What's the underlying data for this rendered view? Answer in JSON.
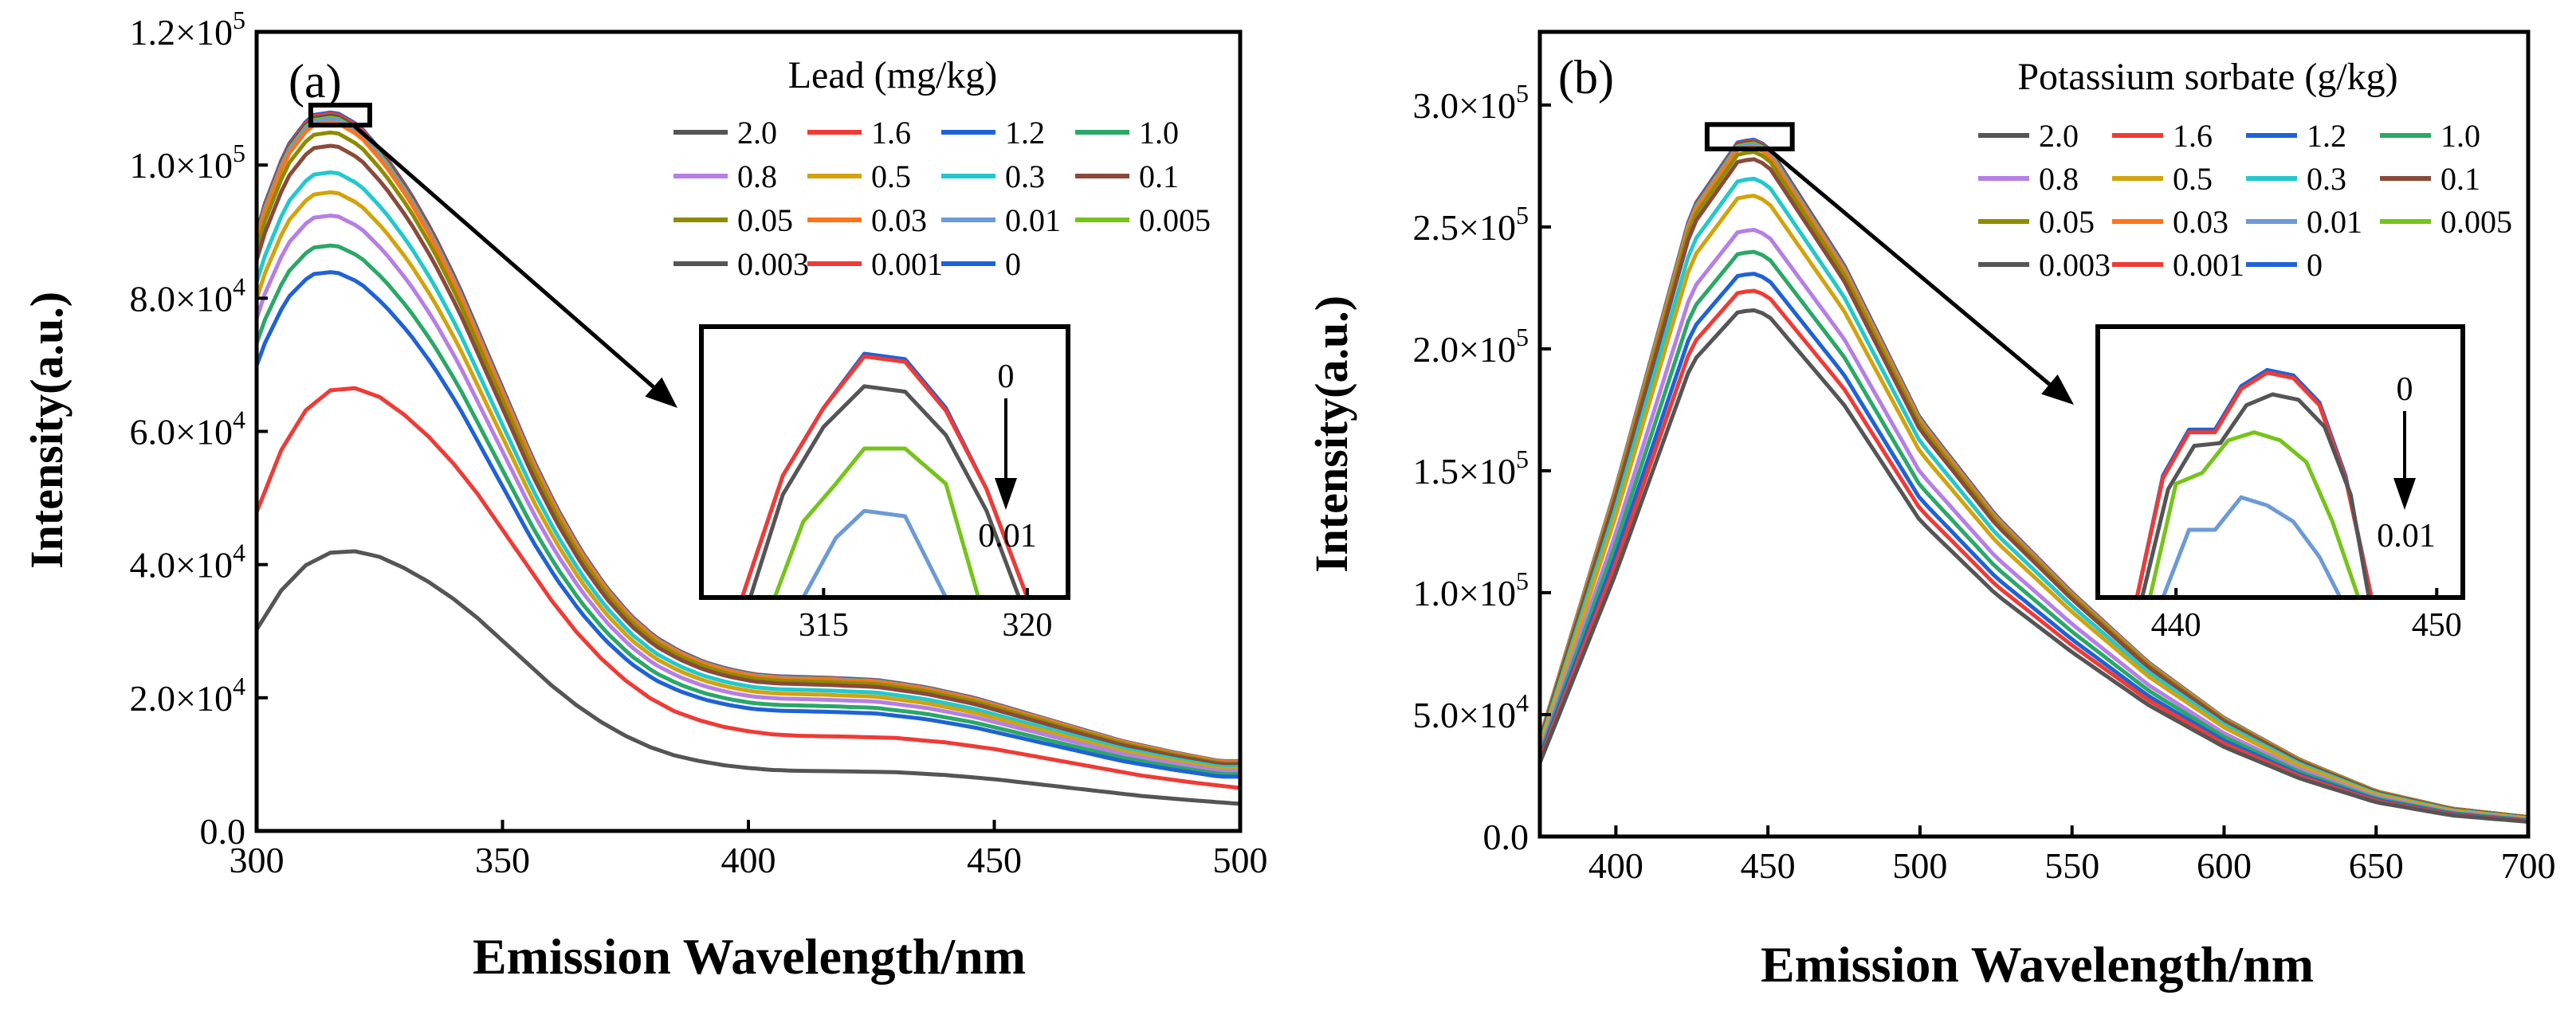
{
  "chart_data": [
    {
      "type": "line",
      "panel_label": "(a)",
      "title": "",
      "xlabel": "Emission Wavelength/nm",
      "ylabel": "Intensity(a.u.)",
      "xlim": [
        300,
        500
      ],
      "ylim": [
        0,
        120000
      ],
      "x_ticks": [
        {
          "value": 300,
          "label": "300"
        },
        {
          "value": 350,
          "label": "350"
        },
        {
          "value": 400,
          "label": "400"
        },
        {
          "value": 450,
          "label": "450"
        },
        {
          "value": 500,
          "label": "500"
        }
      ],
      "y_ticks": [
        {
          "value": 0,
          "mantissa": "0.0",
          "exp": ""
        },
        {
          "value": 20000,
          "mantissa": "2.0×10",
          "exp": "4"
        },
        {
          "value": 40000,
          "mantissa": "4.0×10",
          "exp": "4"
        },
        {
          "value": 60000,
          "mantissa": "6.0×10",
          "exp": "4"
        },
        {
          "value": 80000,
          "mantissa": "8.0×10",
          "exp": "4"
        },
        {
          "value": 100000,
          "mantissa": "1.0×10",
          "exp": "5"
        },
        {
          "value": 120000,
          "mantissa": "1.2×10",
          "exp": "5"
        }
      ],
      "legend_title": "Lead (mg/kg)",
      "legend_columns": 4,
      "grid": false,
      "profile": {
        "x": [
          300,
          305,
          310,
          315,
          320,
          325,
          330,
          335,
          340,
          345,
          350,
          355,
          360,
          365,
          370,
          375,
          380,
          385,
          390,
          395,
          400,
          405,
          410,
          420,
          430,
          440,
          450,
          460,
          470,
          480,
          490,
          500
        ],
        "shape": [
          0.72,
          0.86,
          0.95,
          0.995,
          1.0,
          0.98,
          0.94,
          0.89,
          0.83,
          0.76,
          0.68,
          0.6,
          0.52,
          0.45,
          0.39,
          0.34,
          0.3,
          0.27,
          0.25,
          0.235,
          0.225,
          0.218,
          0.215,
          0.213,
          0.21,
          0.2,
          0.185,
          0.165,
          0.145,
          0.125,
          0.11,
          0.097
        ],
        "series_peak_x": [
          320,
          320,
          316,
          316,
          316,
          316,
          316,
          316,
          316,
          316,
          316,
          316,
          316,
          316,
          316
        ]
      },
      "series": [
        {
          "name": "2.0",
          "color": "#555555",
          "peak": 42000
        },
        {
          "name": "1.6",
          "color": "#ef3b36",
          "peak": 66500
        },
        {
          "name": "1.2",
          "color": "#1f62d6",
          "peak": 84000
        },
        {
          "name": "1.0",
          "color": "#2aa866",
          "peak": 88000
        },
        {
          "name": "0.8",
          "color": "#b57fe6",
          "peak": 92500
        },
        {
          "name": "0.5",
          "color": "#d2a30c",
          "peak": 96000
        },
        {
          "name": "0.3",
          "color": "#23c8cc",
          "peak": 99000
        },
        {
          "name": "0.1",
          "color": "#8a4a3a",
          "peak": 103000
        },
        {
          "name": "0.05",
          "color": "#8d8c00",
          "peak": 105000
        },
        {
          "name": "0.03",
          "color": "#ff7419",
          "peak": 106500
        },
        {
          "name": "0.01",
          "color": "#6c9ad6",
          "peak": 107000
        },
        {
          "name": "0.005",
          "color": "#76c41a",
          "peak": 107200
        },
        {
          "name": "0.003",
          "color": "#555555",
          "peak": 107500
        },
        {
          "name": "0.001",
          "color": "#ef3b36",
          "peak": 107800
        },
        {
          "name": "0",
          "color": "#1f62d6",
          "peak": 108000
        }
      ],
      "highlight_box": {
        "x_range": [
          311,
          323
        ],
        "y_range": [
          106000,
          109000
        ]
      },
      "inset": {
        "xlim": [
          312,
          321
        ],
        "ylim": [
          0,
          100
        ],
        "x_ticks": [
          {
            "value": 315,
            "label": "315"
          },
          {
            "value": 320,
            "label": "320"
          }
        ],
        "arrow_top_label": "0",
        "arrow_bottom_label": "0.01",
        "curves": [
          {
            "color": "#1f62d6",
            "x": [
              313,
              314,
              315,
              316,
              317,
              318,
              319,
              320
            ],
            "y": [
              0,
              45,
              70,
              90,
              88,
              70,
              40,
              0
            ]
          },
          {
            "color": "#ef3b36",
            "x": [
              313,
              314,
              315,
              316,
              317,
              318,
              319,
              320
            ],
            "y": [
              0,
              45,
              70,
              89,
              87,
              69,
              40,
              0
            ]
          },
          {
            "color": "#555555",
            "x": [
              313.2,
              314,
              315,
              316,
              317,
              318,
              319,
              319.8
            ],
            "y": [
              0,
              38,
              63,
              78,
              76,
              60,
              32,
              0
            ]
          },
          {
            "color": "#76c41a",
            "x": [
              313.8,
              314.5,
              315.3,
              316,
              317,
              318,
              318.8
            ],
            "y": [
              0,
              28,
              42,
              55,
              55,
              42,
              0
            ]
          },
          {
            "color": "#6c9ad6",
            "x": [
              314.5,
              315.3,
              316,
              317,
              318
            ],
            "y": [
              0,
              22,
              32,
              30,
              0
            ]
          }
        ]
      }
    },
    {
      "type": "line",
      "panel_label": "(b)",
      "title": "",
      "xlabel": "Emission Wavelength/nm",
      "ylabel": "Intensity(a.u.)",
      "xlim": [
        375,
        700
      ],
      "ylim": [
        0,
        330000
      ],
      "x_ticks": [
        {
          "value": 400,
          "label": "400"
        },
        {
          "value": 450,
          "label": "450"
        },
        {
          "value": 500,
          "label": "500"
        },
        {
          "value": 550,
          "label": "550"
        },
        {
          "value": 600,
          "label": "600"
        },
        {
          "value": 650,
          "label": "650"
        },
        {
          "value": 700,
          "label": "700"
        }
      ],
      "y_ticks": [
        {
          "value": 0,
          "mantissa": "0.0",
          "exp": ""
        },
        {
          "value": 50000,
          "mantissa": "5.0×10",
          "exp": "4"
        },
        {
          "value": 100000,
          "mantissa": "1.0×10",
          "exp": "5"
        },
        {
          "value": 150000,
          "mantissa": "1.5×10",
          "exp": "5"
        },
        {
          "value": 200000,
          "mantissa": "2.0×10",
          "exp": "5"
        },
        {
          "value": 250000,
          "mantissa": "2.5×10",
          "exp": "5"
        },
        {
          "value": 300000,
          "mantissa": "3.0×10",
          "exp": "5"
        }
      ],
      "legend_title": "Potassium sorbate (g/kg)",
      "legend_columns": 4,
      "grid": false,
      "profile": {
        "x": [
          375,
          400,
          425,
          440,
          445,
          450,
          475,
          500,
          525,
          550,
          575,
          600,
          625,
          650,
          675,
          700
        ],
        "shape": [
          0.14,
          0.5,
          0.9,
          0.995,
          1.0,
          0.99,
          0.82,
          0.6,
          0.46,
          0.35,
          0.25,
          0.17,
          0.11,
          0.065,
          0.04,
          0.028
        ],
        "series_peak_x": [
          445,
          445,
          445,
          445,
          445,
          445,
          445,
          445,
          445,
          445,
          445,
          445,
          445,
          445,
          445
        ]
      },
      "series": [
        {
          "name": "2.0",
          "color": "#555555",
          "peak": 216000
        },
        {
          "name": "1.6",
          "color": "#ef3b36",
          "peak": 224000
        },
        {
          "name": "1.2",
          "color": "#1f62d6",
          "peak": 231000
        },
        {
          "name": "1.0",
          "color": "#2aa866",
          "peak": 240000
        },
        {
          "name": "0.8",
          "color": "#b57fe6",
          "peak": 249000
        },
        {
          "name": "0.5",
          "color": "#d2a30c",
          "peak": 263000
        },
        {
          "name": "0.3",
          "color": "#23c8cc",
          "peak": 270000
        },
        {
          "name": "0.1",
          "color": "#8a4a3a",
          "peak": 278000
        },
        {
          "name": "0.05",
          "color": "#8d8c00",
          "peak": 281000
        },
        {
          "name": "0.03",
          "color": "#ff7419",
          "peak": 283000
        },
        {
          "name": "0.01",
          "color": "#6c9ad6",
          "peak": 284000
        },
        {
          "name": "0.005",
          "color": "#76c41a",
          "peak": 284500
        },
        {
          "name": "0.003",
          "color": "#555555",
          "peak": 285000
        },
        {
          "name": "0.001",
          "color": "#ef3b36",
          "peak": 285500
        },
        {
          "name": "0",
          "color": "#1f62d6",
          "peak": 286000
        }
      ],
      "highlight_box": {
        "x_range": [
          430,
          458
        ],
        "y_range": [
          282000,
          292000
        ]
      },
      "inset": {
        "xlim": [
          437,
          451
        ],
        "ylim": [
          0,
          100
        ],
        "x_ticks": [
          {
            "value": 440,
            "label": "440"
          },
          {
            "value": 450,
            "label": "450"
          }
        ],
        "arrow_top_label": "0",
        "arrow_bottom_label": "0.01",
        "curves": [
          {
            "color": "#1f62d6",
            "x": [
              438.5,
              439.5,
              440.5,
              441.5,
              442.5,
              443.5,
              444.5,
              445.5,
              446.5,
              447.5
            ],
            "y": [
              0,
              45,
              62,
              62,
              78,
              84,
              82,
              72,
              45,
              0
            ]
          },
          {
            "color": "#ef3b36",
            "x": [
              438.5,
              439.5,
              440.5,
              441.5,
              442.5,
              443.5,
              444.5,
              445.5,
              446.5,
              447.5
            ],
            "y": [
              0,
              44,
              61,
              61,
              77,
              83,
              81,
              71,
              44,
              0
            ]
          },
          {
            "color": "#555555",
            "x": [
              438.7,
              439.7,
              440.7,
              441.7,
              442.7,
              443.7,
              444.7,
              445.7,
              446.7,
              447.4
            ],
            "y": [
              0,
              40,
              56,
              57,
              71,
              75,
              73,
              63,
              38,
              0
            ]
          },
          {
            "color": "#76c41a",
            "x": [
              439,
              440,
              441,
              442,
              443,
              444,
              445,
              446,
              447
            ],
            "y": [
              0,
              42,
              46,
              58,
              61,
              58,
              50,
              28,
              0
            ]
          },
          {
            "color": "#6c9ad6",
            "x": [
              439.5,
              440.5,
              441.5,
              442.5,
              443.5,
              444.5,
              445.5,
              446.3
            ],
            "y": [
              0,
              25,
              25,
              37,
              34,
              28,
              15,
              0
            ]
          }
        ]
      }
    }
  ]
}
